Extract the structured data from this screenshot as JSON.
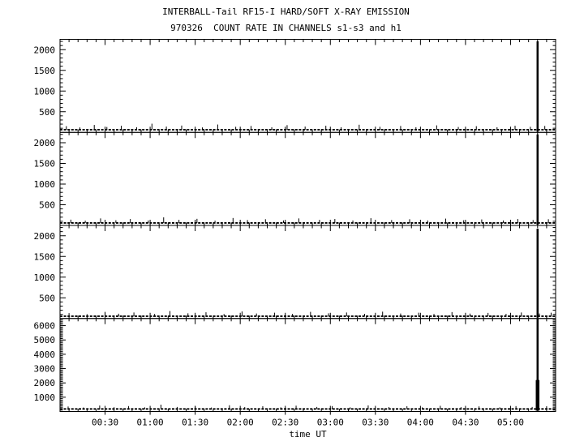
{
  "header": {
    "title": "INTERBALL-Tail RF15-I HARD/SOFT X-RAY EMISSION",
    "subtitle": "970326  COUNT RATE IN CHANNELS s1-s3 and h1"
  },
  "colors": {
    "foreground": "#000000",
    "background": "#ffffff"
  },
  "chart_data": {
    "type": "line",
    "title": "INTERBALL-Tail RF15-I HARD/SOFT X-RAY EMISSION",
    "subtitle": "970326  COUNT RATE IN CHANNELS s1-s3 and h1",
    "xlabel": "time UT",
    "ylabel": "",
    "x_unit": "hours UT",
    "x_range_h": [
      0,
      5.5
    ],
    "x_minor_step_h": 0.1,
    "x_major_ticks": [
      {
        "h": 0.5,
        "label": "00:30"
      },
      {
        "h": 1.0,
        "label": "01:00"
      },
      {
        "h": 1.5,
        "label": "01:30"
      },
      {
        "h": 2.0,
        "label": "02:00"
      },
      {
        "h": 2.5,
        "label": "02:30"
      },
      {
        "h": 3.0,
        "label": "03:00"
      },
      {
        "h": 3.5,
        "label": "03:30"
      },
      {
        "h": 4.0,
        "label": "04:00"
      },
      {
        "h": 4.5,
        "label": "04:30"
      },
      {
        "h": 5.0,
        "label": "05:00"
      }
    ],
    "grid": false,
    "legend": "none",
    "panels": [
      {
        "channel": "s1",
        "ylim": [
          0,
          2250
        ],
        "yticks": [
          500,
          1000,
          1500,
          2000
        ],
        "y_minor_step": 100,
        "baseline_counts": 65,
        "flare": {
          "time_ut": "05:18",
          "time_h": 5.3,
          "peak_counts": 2200
        },
        "noise_spikes": [
          [
            0.07,
            150
          ],
          [
            0.22,
            120
          ],
          [
            0.38,
            180
          ],
          [
            0.52,
            130
          ],
          [
            0.68,
            160
          ],
          [
            0.85,
            125
          ],
          [
            1.02,
            210
          ],
          [
            1.18,
            140
          ],
          [
            1.35,
            165
          ],
          [
            1.58,
            120
          ],
          [
            1.75,
            190
          ],
          [
            1.95,
            135
          ],
          [
            2.12,
            155
          ],
          [
            2.35,
            125
          ],
          [
            2.52,
            175
          ],
          [
            2.72,
            140
          ],
          [
            2.95,
            160
          ],
          [
            3.12,
            125
          ],
          [
            3.32,
            185
          ],
          [
            3.55,
            135
          ],
          [
            3.78,
            155
          ],
          [
            3.95,
            125
          ],
          [
            4.18,
            170
          ],
          [
            4.42,
            130
          ],
          [
            4.62,
            150
          ],
          [
            4.85,
            125
          ],
          [
            5.05,
            160
          ],
          [
            5.22,
            135
          ],
          [
            5.38,
            155
          ]
        ]
      },
      {
        "channel": "s2",
        "ylim": [
          0,
          2250
        ],
        "yticks": [
          500,
          1000,
          1500,
          2000
        ],
        "y_minor_step": 100,
        "baseline_counts": 60,
        "flare": {
          "time_ut": "05:18",
          "time_h": 5.3,
          "peak_counts": 2200
        },
        "noise_spikes": [
          [
            0.12,
            140
          ],
          [
            0.28,
            115
          ],
          [
            0.45,
            170
          ],
          [
            0.62,
            125
          ],
          [
            0.78,
            155
          ],
          [
            0.98,
            120
          ],
          [
            1.15,
            195
          ],
          [
            1.32,
            135
          ],
          [
            1.52,
            160
          ],
          [
            1.72,
            115
          ],
          [
            1.92,
            180
          ],
          [
            2.08,
            130
          ],
          [
            2.28,
            150
          ],
          [
            2.48,
            120
          ],
          [
            2.65,
            170
          ],
          [
            2.88,
            135
          ],
          [
            3.05,
            155
          ],
          [
            3.25,
            120
          ],
          [
            3.45,
            175
          ],
          [
            3.68,
            130
          ],
          [
            3.88,
            150
          ],
          [
            4.08,
            120
          ],
          [
            4.28,
            165
          ],
          [
            4.48,
            125
          ],
          [
            4.68,
            145
          ],
          [
            4.92,
            120
          ],
          [
            5.08,
            155
          ],
          [
            5.25,
            130
          ],
          [
            5.42,
            150
          ]
        ]
      },
      {
        "channel": "s3",
        "ylim": [
          0,
          2250
        ],
        "yticks": [
          500,
          1000,
          1500,
          2000
        ],
        "y_minor_step": 100,
        "baseline_counts": 55,
        "flare": {
          "time_ut": "05:18",
          "time_h": 5.3,
          "peak_counts": 2170
        },
        "noise_spikes": [
          [
            0.1,
            130
          ],
          [
            0.3,
            105
          ],
          [
            0.5,
            160
          ],
          [
            0.65,
            115
          ],
          [
            0.82,
            145
          ],
          [
            1.05,
            110
          ],
          [
            1.22,
            180
          ],
          [
            1.42,
            125
          ],
          [
            1.62,
            150
          ],
          [
            1.82,
            108
          ],
          [
            2.02,
            170
          ],
          [
            2.18,
            120
          ],
          [
            2.38,
            140
          ],
          [
            2.58,
            112
          ],
          [
            2.78,
            160
          ],
          [
            2.98,
            125
          ],
          [
            3.18,
            145
          ],
          [
            3.38,
            112
          ],
          [
            3.58,
            165
          ],
          [
            3.78,
            120
          ],
          [
            3.98,
            140
          ],
          [
            4.15,
            110
          ],
          [
            4.35,
            155
          ],
          [
            4.55,
            118
          ],
          [
            4.75,
            135
          ],
          [
            4.95,
            112
          ],
          [
            5.12,
            145
          ],
          [
            5.32,
            120
          ],
          [
            5.45,
            140
          ]
        ]
      },
      {
        "channel": "h1",
        "ylim": [
          0,
          6500
        ],
        "yticks": [
          1000,
          2000,
          3000,
          4000,
          5000,
          6000
        ],
        "y_minor_step": 100,
        "baseline_counts": 180,
        "flare": {
          "time_ut": "05:18",
          "time_h": 5.3,
          "peak_counts": 6500,
          "base_peak_counts": 2200,
          "base_width_h": 0.035
        },
        "noise_spikes": [
          [
            0.09,
            350
          ],
          [
            0.26,
            280
          ],
          [
            0.44,
            420
          ],
          [
            0.6,
            300
          ],
          [
            0.76,
            380
          ],
          [
            0.94,
            290
          ],
          [
            1.12,
            480
          ],
          [
            1.3,
            320
          ],
          [
            1.5,
            390
          ],
          [
            1.68,
            280
          ],
          [
            1.88,
            440
          ],
          [
            2.05,
            310
          ],
          [
            2.25,
            370
          ],
          [
            2.45,
            290
          ],
          [
            2.62,
            410
          ],
          [
            2.85,
            320
          ],
          [
            3.02,
            380
          ],
          [
            3.22,
            290
          ],
          [
            3.42,
            430
          ],
          [
            3.65,
            310
          ],
          [
            3.85,
            370
          ],
          [
            4.02,
            290
          ],
          [
            4.22,
            400
          ],
          [
            4.45,
            305
          ],
          [
            4.65,
            360
          ],
          [
            4.88,
            290
          ],
          [
            5.06,
            380
          ],
          [
            5.24,
            320
          ],
          [
            5.4,
            370
          ]
        ]
      }
    ]
  }
}
